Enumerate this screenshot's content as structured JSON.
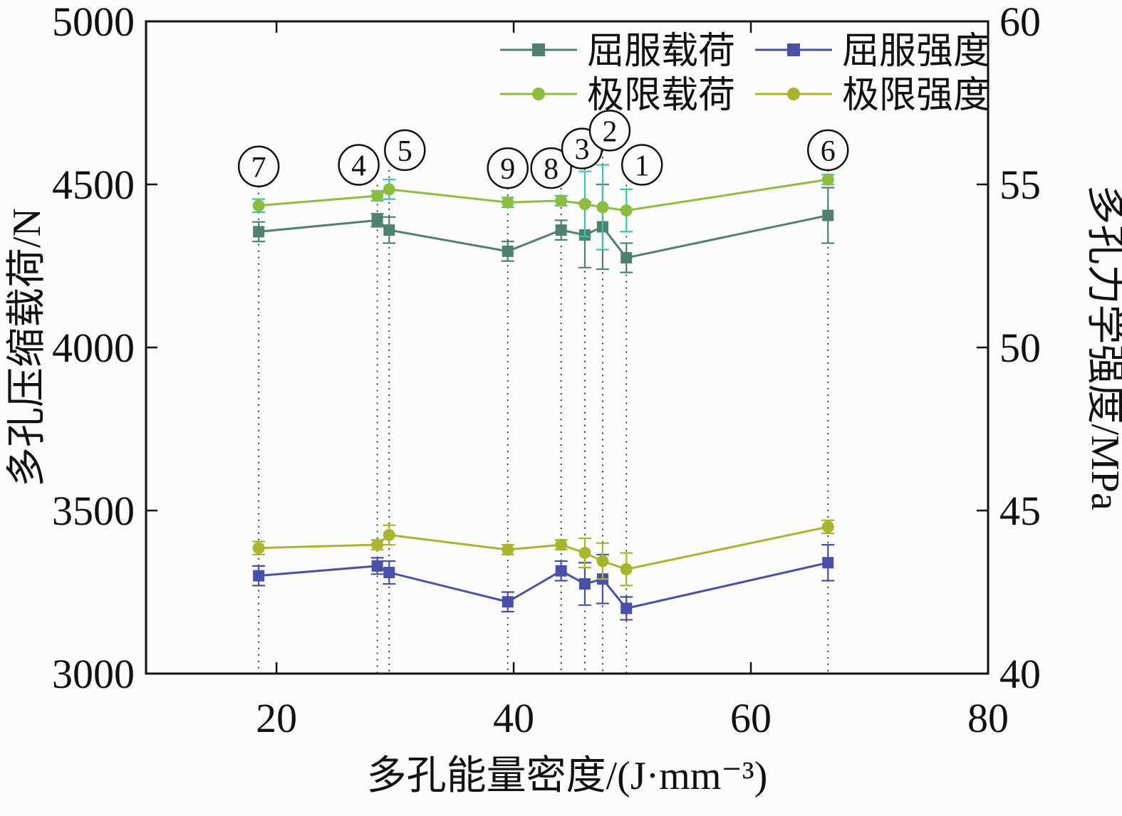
{
  "chart_data": {
    "type": "line",
    "xlabel": "多孔能量密度/(J·mm⁻³)",
    "ylabel_left": "多孔压缩载荷/N",
    "ylabel_right": "多孔力学强度/MPa",
    "xlim": [
      9,
      80
    ],
    "xticks": [
      20,
      40,
      60,
      80
    ],
    "ylim_left": [
      3000,
      5000
    ],
    "yticks_left": [
      3000,
      3500,
      4000,
      4500,
      5000
    ],
    "ylim_right": [
      40,
      60
    ],
    "yticks_right": [
      40,
      45,
      50,
      55,
      60
    ],
    "x": [
      18.5,
      28.5,
      29.5,
      39.5,
      44,
      46,
      47.5,
      49.5,
      66.5
    ],
    "series": [
      {
        "name": "屈服载荷",
        "axis": "left",
        "marker": "square",
        "color": "#4f8071",
        "values": [
          4355,
          4390,
          4360,
          4295,
          4360,
          4345,
          4370,
          4275,
          4405
        ],
        "errors": [
          30,
          20,
          40,
          30,
          30,
          100,
          130,
          45,
          85
        ]
      },
      {
        "name": "屈服强度",
        "axis": "right",
        "marker": "square",
        "color": "#4a50a8",
        "values": [
          43.0,
          43.3,
          43.1,
          42.2,
          43.15,
          42.75,
          42.9,
          42.0,
          43.4
        ],
        "errors": [
          0.3,
          0.25,
          0.35,
          0.3,
          0.3,
          0.65,
          0.75,
          0.35,
          0.55
        ]
      },
      {
        "name": "极限载荷",
        "axis": "left",
        "marker": "circle",
        "color": "#8cbd3f",
        "error_color": "#3fc3a9",
        "values": [
          4435,
          4465,
          4485,
          4445,
          4450,
          4440,
          4430,
          4420,
          4515
        ],
        "errors": [
          20,
          15,
          30,
          15,
          15,
          100,
          130,
          65,
          15
        ]
      },
      {
        "name": "极限强度",
        "axis": "right",
        "marker": "circle",
        "color": "#a9b42f",
        "values": [
          43.85,
          43.95,
          44.25,
          43.8,
          43.95,
          43.7,
          43.45,
          43.2,
          44.5
        ],
        "errors": [
          0.2,
          0.15,
          0.3,
          0.15,
          0.15,
          0.45,
          0.55,
          0.5,
          0.2
        ]
      }
    ],
    "annotations": [
      {
        "label": "7",
        "x": 18.5,
        "y": 4555,
        "dx": 0
      },
      {
        "label": "4",
        "x": 28.5,
        "y": 4560,
        "dx": -26
      },
      {
        "label": "5",
        "x": 29.5,
        "y": 4605,
        "dx": 22
      },
      {
        "label": "9",
        "x": 39.5,
        "y": 4550,
        "dx": 0
      },
      {
        "label": "8",
        "x": 44,
        "y": 4550,
        "dx": -14
      },
      {
        "label": "3",
        "x": 46,
        "y": 4610,
        "dx": -4
      },
      {
        "label": "2",
        "x": 47.5,
        "y": 4665,
        "dx": 10
      },
      {
        "label": "1",
        "x": 49.5,
        "y": 4560,
        "dx": 22
      },
      {
        "label": "6",
        "x": 66.5,
        "y": 4605,
        "dx": 0
      }
    ],
    "colors": {
      "axis": "#111111",
      "background": "#fcfcfc"
    }
  }
}
